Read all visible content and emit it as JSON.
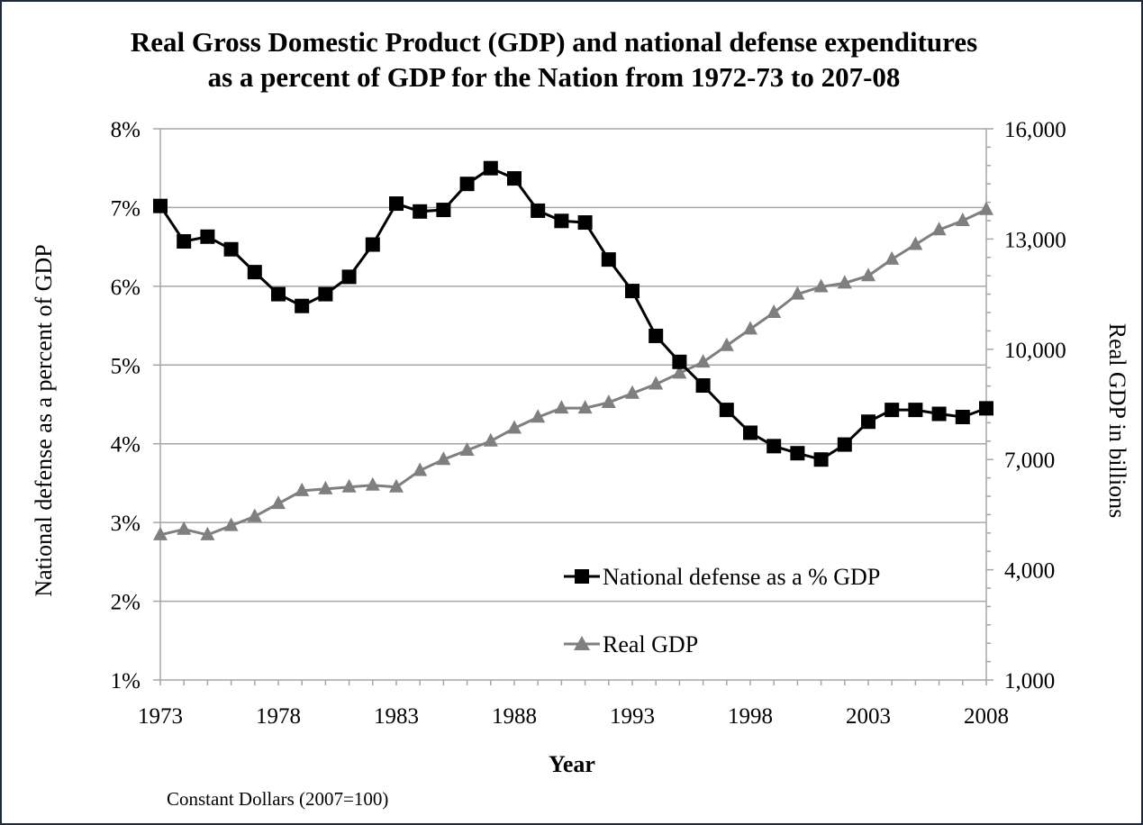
{
  "chart_data": {
    "type": "line",
    "title_line1": "Real Gross Domestic Product (GDP) and national defense expenditures",
    "title_line2": "as a percent of GDP for the Nation from 1972-73 to 207-08",
    "xlabel": "Year",
    "ylabel_left": "National defense as a percent of GDP",
    "ylabel_right": "Real GDP in billions",
    "note": "Constant Dollars (2007=100)",
    "x": [
      1973,
      1974,
      1975,
      1976,
      1977,
      1978,
      1979,
      1980,
      1981,
      1982,
      1983,
      1984,
      1985,
      1986,
      1987,
      1988,
      1989,
      1990,
      1991,
      1992,
      1993,
      1994,
      1995,
      1996,
      1997,
      1998,
      1999,
      2000,
      2001,
      2002,
      2003,
      2004,
      2005,
      2006,
      2007,
      2008
    ],
    "xlim": [
      1973,
      2008
    ],
    "x_ticks": [
      1973,
      1978,
      1983,
      1988,
      1993,
      1998,
      2003,
      2008
    ],
    "x_tick_labels": [
      "1973",
      "1978",
      "1983",
      "1988",
      "1993",
      "1998",
      "2003",
      "2008"
    ],
    "y_left_lim": [
      1,
      8
    ],
    "y_left_ticks": [
      1,
      2,
      3,
      4,
      5,
      6,
      7,
      8
    ],
    "y_left_tick_labels": [
      "1%",
      "2%",
      "3%",
      "4%",
      "5%",
      "6%",
      "7%",
      "8%"
    ],
    "y_right_lim": [
      1000,
      16000
    ],
    "y_right_ticks": [
      1000,
      4000,
      7000,
      10000,
      13000,
      16000
    ],
    "y_right_tick_labels": [
      "1,000",
      "4,000",
      "7,000",
      "10,000",
      "13,000",
      "16,000"
    ],
    "grid": true,
    "legend_position": "bottom-right",
    "series": [
      {
        "name": "National defense as a % GDP",
        "axis": "left",
        "marker": "square",
        "color": "#000000",
        "values": [
          7.02,
          6.57,
          6.63,
          6.47,
          6.18,
          5.9,
          5.75,
          5.9,
          6.12,
          6.53,
          7.05,
          6.95,
          6.97,
          7.3,
          7.5,
          7.37,
          6.96,
          6.83,
          6.81,
          6.34,
          5.94,
          5.37,
          5.04,
          4.74,
          4.43,
          4.14,
          3.97,
          3.88,
          3.8,
          3.99,
          4.28,
          4.43,
          4.43,
          4.38,
          4.34,
          4.45
        ]
      },
      {
        "name": "Real GDP",
        "axis": "right",
        "marker": "triangle",
        "color": "#7f7f7f",
        "values": [
          4950,
          5100,
          4950,
          5200,
          5450,
          5800,
          6150,
          6200,
          6250,
          6300,
          6250,
          6700,
          7000,
          7250,
          7500,
          7850,
          8150,
          8400,
          8400,
          8550,
          8800,
          9050,
          9350,
          9650,
          10100,
          10550,
          11000,
          11500,
          11700,
          11800,
          12000,
          12450,
          12850,
          13250,
          13500,
          13800
        ]
      }
    ]
  }
}
